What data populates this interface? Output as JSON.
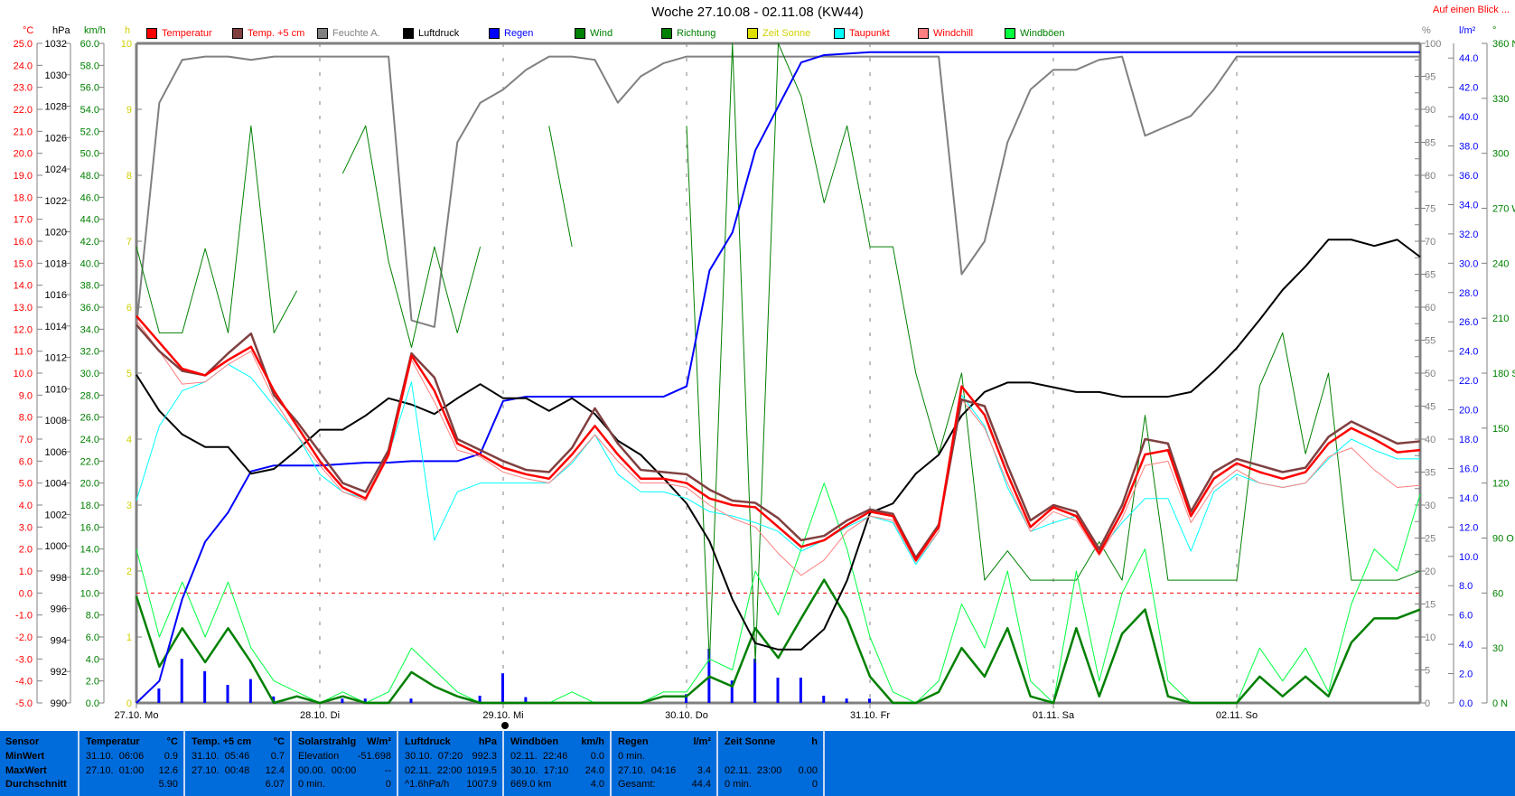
{
  "title": "Woche 27.10.08 - 02.11.08 (KW44)",
  "glance_link": "Auf einen Blick ...",
  "legend": [
    {
      "label": "Temperatur",
      "color": "#ff0000",
      "text_color": "#ff0000"
    },
    {
      "label": "Temp. +5 cm",
      "color": "#804040",
      "text_color": "#ff0000"
    },
    {
      "label": "Feuchte A.",
      "color": "#808080",
      "text_color": "#808080"
    },
    {
      "label": "Luftdruck",
      "color": "#000000",
      "text_color": "#000000"
    },
    {
      "label": "Regen",
      "color": "#0000ff",
      "text_color": "#0000ff"
    },
    {
      "label": "Wind",
      "color": "#008000",
      "text_color": "#008000"
    },
    {
      "label": "Richtung",
      "color": "#008000",
      "text_color": "#008000"
    },
    {
      "label": "Zeit Sonne",
      "color": "#e0e000",
      "text_color": "#d0d000"
    },
    {
      "label": "Taupunkt",
      "color": "#00ffff",
      "text_color": "#ff0000"
    },
    {
      "label": "Windchill",
      "color": "#ff8080",
      "text_color": "#ff0000"
    },
    {
      "label": "Windböen",
      "color": "#00ff40",
      "text_color": "#008000"
    }
  ],
  "units": {
    "temp": "°C",
    "pressure": "hPa",
    "wind": "km/h",
    "sun": "h",
    "humidity": "%",
    "rain": "l/m²",
    "direction": "°"
  },
  "chart_data": {
    "type": "line",
    "grid": "vertical dashed at day boundaries",
    "reference_line": {
      "axis": "temp",
      "value": 0.0,
      "color": "#ff0000",
      "style": "dashed"
    },
    "axes": {
      "temp": {
        "min": -5,
        "max": 25,
        "step": 1,
        "decimals": 1,
        "color": "#ff0000",
        "side": "left"
      },
      "pressure": {
        "min": 990,
        "max": 1032,
        "step": 2,
        "decimals": 0,
        "color": "#000000",
        "side": "left"
      },
      "wind": {
        "min": 0,
        "max": 60,
        "step": 2,
        "decimals": 1,
        "color": "#008000",
        "side": "left"
      },
      "sun": {
        "min": 0,
        "max": 10,
        "step": 1,
        "decimals": 0,
        "color": "#d0d000",
        "side": "left"
      },
      "humidity": {
        "min": 0,
        "max": 100,
        "step": 5,
        "decimals": 0,
        "color": "#808080",
        "side": "right"
      },
      "rain": {
        "min": 0,
        "max": 45,
        "step": 2,
        "decimals": 1,
        "color": "#0000ff",
        "side": "right"
      },
      "direction": {
        "min": 0,
        "max": 360,
        "step": 30,
        "decimals": 0,
        "color": "#008000",
        "side": "right",
        "compass": {
          "0": "N",
          "90": "O",
          "180": "S",
          "270": "W",
          "360": "N"
        }
      }
    },
    "x_ticks": [
      {
        "date": "27.10. 00:00",
        "label": "27.10. Mo"
      },
      {
        "date": "28.10. 00:00",
        "label": "28.10. Di"
      },
      {
        "date": "29.10. 00:00",
        "label": "29.10. Mi"
      },
      {
        "date": "30.10. 00:00",
        "label": "30.10. Do"
      },
      {
        "date": "31.10. 00:00",
        "label": "31.10. Fr"
      },
      {
        "date": "01.11. 00:00",
        "label": "01.11. Sa"
      },
      {
        "date": "02.11. 00:00",
        "label": "02.11. So"
      }
    ],
    "x_range": [
      "27.10. 00:00",
      "03.11. 00:00"
    ],
    "times": [
      "27.10. 00:00",
      "27.10. 03:00",
      "27.10. 06:00",
      "27.10. 09:00",
      "27.10. 12:00",
      "27.10. 15:00",
      "27.10. 18:00",
      "27.10. 21:00",
      "28.10. 00:00",
      "28.10. 03:00",
      "28.10. 06:00",
      "28.10. 09:00",
      "28.10. 12:00",
      "28.10. 15:00",
      "28.10. 18:00",
      "28.10. 21:00",
      "29.10. 00:00",
      "29.10. 03:00",
      "29.10. 06:00",
      "29.10. 09:00",
      "29.10. 12:00",
      "29.10. 15:00",
      "29.10. 18:00",
      "29.10. 21:00",
      "30.10. 00:00",
      "30.10. 03:00",
      "30.10. 06:00",
      "30.10. 09:00",
      "30.10. 12:00",
      "30.10. 15:00",
      "30.10. 18:00",
      "30.10. 21:00",
      "31.10. 00:00",
      "31.10. 03:00",
      "31.10. 06:00",
      "31.10. 09:00",
      "31.10. 12:00",
      "31.10. 15:00",
      "31.10. 18:00",
      "31.10. 21:00",
      "01.11. 00:00",
      "01.11. 03:00",
      "01.11. 06:00",
      "01.11. 09:00",
      "01.11. 12:00",
      "01.11. 15:00",
      "01.11. 18:00",
      "01.11. 21:00",
      "02.11. 00:00",
      "02.11. 03:00",
      "02.11. 06:00",
      "02.11. 09:00",
      "02.11. 12:00",
      "02.11. 15:00",
      "02.11. 18:00",
      "02.11. 21:00",
      "03.11. 00:00"
    ],
    "series": [
      {
        "name": "Feuchte A.",
        "axis": "humidity",
        "color": "#808080",
        "width": 2,
        "values": [
          57,
          91,
          97.5,
          98,
          98,
          97.5,
          98,
          98,
          98,
          98,
          98,
          98,
          58,
          57,
          85,
          91,
          93,
          96,
          98,
          98,
          97.5,
          91,
          95,
          97,
          98,
          98,
          98,
          98,
          98,
          98,
          98,
          98,
          98,
          98,
          98,
          98,
          65,
          70,
          85,
          93,
          96,
          96,
          97.5,
          98,
          86,
          87.5,
          89,
          93,
          98,
          98,
          98,
          98,
          98,
          98,
          98,
          98,
          98
        ]
      },
      {
        "name": "Richtung",
        "axis": "direction",
        "color": "#008000",
        "width": 1,
        "values": [
          249,
          202,
          202,
          248,
          202,
          315,
          202,
          225,
          null,
          289,
          315,
          241,
          194,
          249,
          202,
          249,
          null,
          null,
          315,
          249,
          null,
          null,
          null,
          null,
          315,
          22,
          360,
          22,
          360,
          331,
          273,
          315,
          249,
          249,
          180,
          136,
          180,
          67,
          83,
          67,
          67,
          67,
          88,
          67,
          157,
          67,
          67,
          67,
          67,
          173,
          202,
          136,
          180,
          67,
          67,
          67,
          72
        ]
      },
      {
        "name": "Windböen",
        "axis": "wind",
        "color": "#00ff40",
        "width": 1,
        "values": [
          14,
          6,
          11,
          6,
          11,
          5,
          2,
          1,
          0,
          1,
          0,
          1,
          5,
          3,
          1,
          0,
          0,
          0,
          0,
          1,
          0,
          0,
          0,
          1,
          1,
          4,
          3,
          12,
          8,
          14,
          20,
          14,
          6,
          1,
          0,
          2,
          9,
          5,
          12,
          2,
          0,
          12,
          2,
          10,
          14,
          2,
          0,
          0,
          0,
          5,
          2,
          5,
          1,
          9,
          14,
          12,
          19
        ]
      },
      {
        "name": "Wind",
        "axis": "wind",
        "color": "#008000",
        "width": 2.5,
        "values": [
          9.7,
          3.3,
          6.8,
          3.7,
          6.8,
          3.7,
          0,
          0.6,
          0,
          0.6,
          0,
          0,
          2.8,
          1.5,
          0.6,
          0,
          0,
          0,
          0,
          0,
          0,
          0,
          0,
          0.6,
          0.6,
          2.4,
          1.5,
          6.8,
          4.1,
          7.7,
          11.2,
          7.7,
          2.4,
          0,
          0,
          1,
          5,
          2.4,
          6.8,
          0.6,
          0,
          6.8,
          0.6,
          6.3,
          8.5,
          0.6,
          0,
          0,
          0,
          2.4,
          0.6,
          2.4,
          0.6,
          5.5,
          7.7,
          7.7,
          8.5
        ]
      },
      {
        "name": "Regen",
        "axis": "rain",
        "color": "#0000ff",
        "width": 2,
        "values": [
          0,
          1.5,
          7.1,
          11.0,
          13.0,
          15.8,
          16.2,
          16.2,
          16.2,
          16.3,
          16.4,
          16.4,
          16.5,
          16.5,
          16.5,
          17.0,
          20.6,
          20.9,
          20.9,
          20.9,
          20.9,
          20.9,
          20.9,
          20.9,
          21.6,
          29.5,
          32.1,
          37.7,
          40.7,
          43.7,
          44.2,
          44.3,
          44.4,
          44.4,
          44.4,
          44.4,
          44.4,
          44.4,
          44.4,
          44.4,
          44.4,
          44.4,
          44.4,
          44.4,
          44.4,
          44.4,
          44.4,
          44.4,
          44.4,
          44.4,
          44.4,
          44.4,
          44.4,
          44.4,
          44.4,
          44.4,
          44.4
        ]
      },
      {
        "name": "Luftdruck",
        "axis": "pressure",
        "color": "#000000",
        "width": 2,
        "values": [
          1010.9,
          1008.6,
          1007.1,
          1006.3,
          1006.3,
          1004.6,
          1004.9,
          1006.1,
          1007.4,
          1007.4,
          1008.3,
          1009.4,
          1009.0,
          1008.4,
          1009.4,
          1010.3,
          1009.4,
          1009.4,
          1008.6,
          1009.4,
          1008.4,
          1006.7,
          1005.8,
          1004.3,
          1002.7,
          1000.3,
          996.6,
          993.8,
          993.4,
          993.4,
          994.7,
          997.8,
          1002.1,
          1002.7,
          1004.6,
          1005.8,
          1008.3,
          1009.8,
          1010.4,
          1010.4,
          1010.1,
          1009.8,
          1009.8,
          1009.5,
          1009.5,
          1009.5,
          1009.8,
          1011.1,
          1012.6,
          1014.4,
          1016.3,
          1017.8,
          1019.5,
          1019.5,
          1019.1,
          1019.5,
          1018.4
        ]
      },
      {
        "name": "Taupunkt",
        "axis": "temp",
        "color": "#00ffff",
        "width": 1,
        "values": [
          4.2,
          7.6,
          9.2,
          9.6,
          10.4,
          9.8,
          8.5,
          7.2,
          5.4,
          4.6,
          4.3,
          6.3,
          9.6,
          2.4,
          4.6,
          5.0,
          5.0,
          5.0,
          5.0,
          5.9,
          7.2,
          5.4,
          4.6,
          4.6,
          4.3,
          3.7,
          3.5,
          3.2,
          2.8,
          1.9,
          2.4,
          3.0,
          3.5,
          3.2,
          1.3,
          2.8,
          9.0,
          7.6,
          4.8,
          2.8,
          3.2,
          3.5,
          1.9,
          3.2,
          4.3,
          4.3,
          1.9,
          4.6,
          5.4,
          5.0,
          4.8,
          5.0,
          6.1,
          7.0,
          6.5,
          6.1,
          6.1
        ]
      },
      {
        "name": "Windchill",
        "axis": "temp",
        "color": "#ff8080",
        "width": 1,
        "values": [
          12.4,
          11.0,
          9.5,
          9.6,
          10.4,
          11.0,
          8.8,
          7.2,
          5.8,
          4.6,
          4.2,
          6.2,
          10.6,
          8.7,
          6.5,
          6.2,
          5.5,
          5.2,
          5.0,
          6.0,
          7.2,
          6.0,
          5.0,
          5.0,
          4.8,
          4.0,
          3.4,
          3.0,
          1.8,
          0.8,
          1.5,
          2.8,
          3.5,
          3.3,
          1.4,
          2.8,
          8.8,
          7.5,
          5.0,
          2.8,
          3.7,
          3.3,
          1.7,
          3.4,
          5.8,
          6.0,
          3.2,
          4.8,
          5.6,
          5.0,
          4.8,
          5.0,
          6.2,
          6.6,
          5.6,
          4.8,
          4.9
        ]
      },
      {
        "name": "Temp. +5 cm",
        "axis": "temp",
        "color": "#804040",
        "width": 2.5,
        "values": [
          12.2,
          11.0,
          10.1,
          9.9,
          10.9,
          11.8,
          9.0,
          7.8,
          6.4,
          5.0,
          4.6,
          6.5,
          10.9,
          9.8,
          7.0,
          6.5,
          6.0,
          5.6,
          5.5,
          6.6,
          8.4,
          6.8,
          5.6,
          5.5,
          5.4,
          4.7,
          4.2,
          4.1,
          3.4,
          2.4,
          2.6,
          3.3,
          3.8,
          3.6,
          1.6,
          3.1,
          8.8,
          8.5,
          5.8,
          3.3,
          4.0,
          3.7,
          2.0,
          4.0,
          7.0,
          6.8,
          3.7,
          5.5,
          6.1,
          5.8,
          5.5,
          5.7,
          7.1,
          7.8,
          7.3,
          6.8,
          6.9
        ]
      },
      {
        "name": "Temperatur",
        "axis": "temp",
        "color": "#ff0000",
        "width": 2.5,
        "values": [
          12.6,
          11.4,
          10.2,
          9.9,
          10.6,
          11.2,
          9.2,
          7.6,
          6.0,
          4.8,
          4.3,
          6.3,
          10.8,
          9.2,
          6.8,
          6.3,
          5.7,
          5.4,
          5.2,
          6.3,
          7.6,
          6.3,
          5.2,
          5.2,
          5.0,
          4.3,
          4.0,
          3.9,
          3.0,
          2.1,
          2.4,
          3.1,
          3.7,
          3.5,
          1.5,
          3.0,
          9.4,
          8.1,
          5.4,
          3.0,
          3.9,
          3.5,
          1.8,
          3.7,
          6.3,
          6.5,
          3.5,
          5.2,
          5.9,
          5.5,
          5.2,
          5.5,
          6.8,
          7.5,
          7.0,
          6.4,
          6.5
        ]
      }
    ]
  },
  "table": [
    {
      "header": "Sensor",
      "unit": "",
      "rows": [
        [
          "MinWert",
          ""
        ],
        [
          "MaxWert",
          ""
        ],
        [
          "Durchschnitt",
          ""
        ]
      ],
      "bold_rows": true
    },
    {
      "header": "Temperatur",
      "unit": "°C",
      "rows": [
        [
          "31.10.  06:06",
          "0.9"
        ],
        [
          "27.10.  01:00",
          "12.6"
        ],
        [
          "",
          "5.90"
        ]
      ]
    },
    {
      "header": "Temp. +5 cm",
      "unit": "°C",
      "rows": [
        [
          "31.10.  05:46",
          "0.7"
        ],
        [
          "27.10.  00:48",
          "12.4"
        ],
        [
          "",
          "6.07"
        ]
      ]
    },
    {
      "header": "Solarstrahlg",
      "unit": "W/m²",
      "rows": [
        [
          "Elevation",
          "-51.698"
        ],
        [
          "00.00.  00:00",
          "--"
        ],
        [
          "0 min.",
          "0"
        ]
      ]
    },
    {
      "header": "Luftdruck",
      "unit": "hPa",
      "rows": [
        [
          "30.10.  07:20",
          "992.3"
        ],
        [
          "02.11.  22:00",
          "1019.5"
        ],
        [
          "^1.6hPa/h",
          "1007.9"
        ]
      ]
    },
    {
      "header": "Windböen",
      "unit": "km/h",
      "rows": [
        [
          "02.11.  22:46",
          "0.0"
        ],
        [
          "30.10.  17:10",
          "24.0"
        ],
        [
          "669.0 km",
          "4.0"
        ]
      ]
    },
    {
      "header": "Regen",
      "unit": "l/m²",
      "rows": [
        [
          "0 min.",
          ""
        ],
        [
          "27.10.  04:16",
          "3.4"
        ],
        [
          "Gesamt:",
          "44.4"
        ]
      ]
    },
    {
      "header": "Zeit Sonne",
      "unit": "h",
      "rows": [
        [
          "",
          ""
        ],
        [
          "02.11.  23:00",
          "0.00"
        ],
        [
          "0 min.",
          "0"
        ]
      ]
    }
  ]
}
